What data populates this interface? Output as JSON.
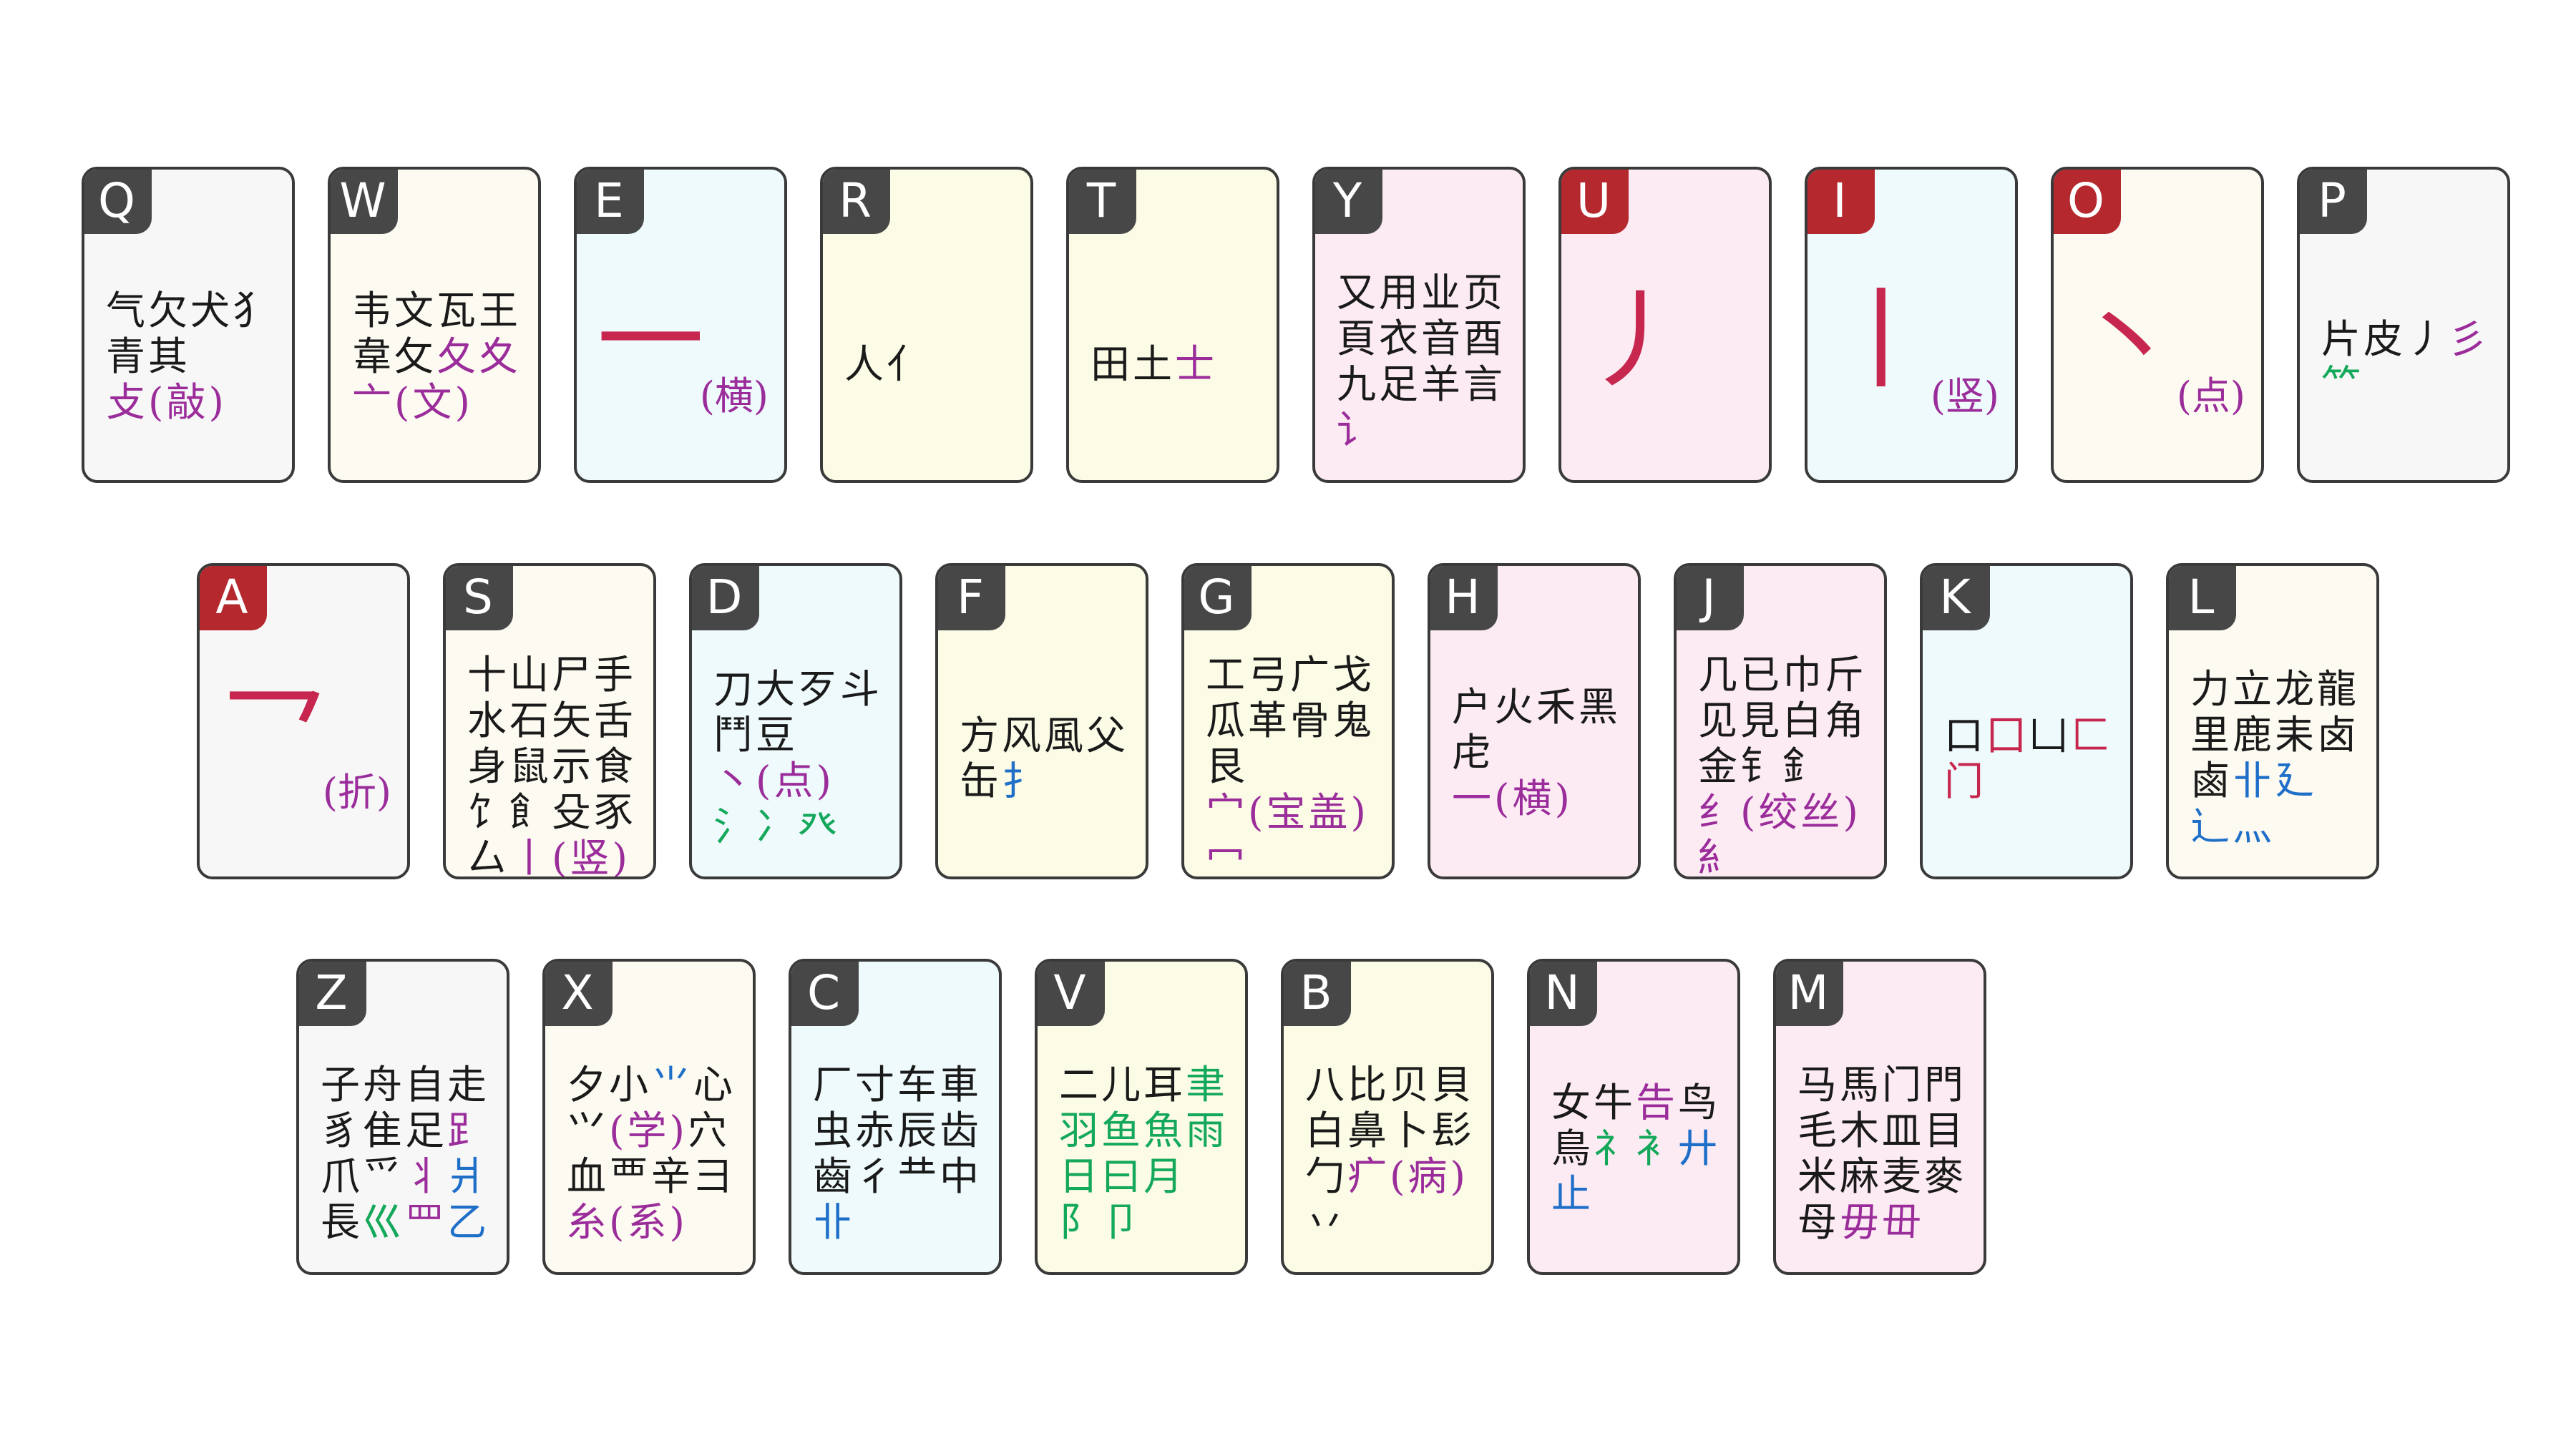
{
  "colors": {
    "black": "#1a1a1a",
    "purple": "#9b2d9b",
    "green": "#14a85a",
    "blue": "#1f6fc9",
    "crimson": "#c7264e"
  },
  "keys": [
    {
      "letter": "Q",
      "badge": "dark",
      "bg": "#f7f7f7",
      "lines": [
        [
          {
            "t": "气欠犬犭",
            "c": "black"
          }
        ],
        [
          {
            "t": "青其",
            "c": "black"
          }
        ],
        [
          {
            "t": "攴(敲)",
            "c": "purple"
          }
        ]
      ]
    },
    {
      "letter": "W",
      "badge": "dark",
      "bg": "#fdfbf1",
      "lines": [
        [
          {
            "t": "韦文瓦王",
            "c": "black"
          }
        ],
        [
          {
            "t": "韋攵",
            "c": "black"
          },
          {
            "t": "夂夊",
            "c": "purple"
          }
        ],
        [
          {
            "t": "亠(文)",
            "c": "purple"
          }
        ]
      ]
    },
    {
      "letter": "E",
      "badge": "dark",
      "bg": "#eefafc",
      "big": "一",
      "bigsub": "(横)"
    },
    {
      "letter": "R",
      "badge": "dark",
      "bg": "#fbfbe6",
      "lines": [
        [
          {
            "t": "人亻",
            "c": "black"
          }
        ]
      ]
    },
    {
      "letter": "T",
      "badge": "dark",
      "bg": "#fbfbe6",
      "lines": [
        [
          {
            "t": "田土",
            "c": "black"
          },
          {
            "t": "士",
            "c": "purple"
          }
        ]
      ]
    },
    {
      "letter": "Y",
      "badge": "dark",
      "bg": "#fcebf3",
      "lines": [
        [
          {
            "t": "又用业页",
            "c": "black"
          }
        ],
        [
          {
            "t": "頁衣音酉",
            "c": "black"
          }
        ],
        [
          {
            "t": "九足羊言",
            "c": "black"
          }
        ],
        [
          {
            "t": "讠",
            "c": "purple"
          }
        ]
      ]
    },
    {
      "letter": "U",
      "badge": "red",
      "bg": "#fcebf3",
      "big": "丿"
    },
    {
      "letter": "I",
      "badge": "red",
      "bg": "#eefafc",
      "big": "丨",
      "bigsub": "(竖)"
    },
    {
      "letter": "O",
      "badge": "red",
      "bg": "#fdfbf1",
      "big": "丶",
      "bigsub": "(点)"
    },
    {
      "letter": "P",
      "badge": "dark",
      "bg": "#f7f7f7",
      "lines": [
        [
          {
            "t": "片皮丿",
            "c": "black"
          },
          {
            "t": "彡",
            "c": "purple"
          }
        ],
        [
          {
            "t": "⺮",
            "c": "green"
          }
        ]
      ]
    },
    {
      "letter": "A",
      "badge": "red",
      "bg": "#f7f7f7",
      "big": "乛",
      "bigsub": "(折)"
    },
    {
      "letter": "S",
      "badge": "dark",
      "bg": "#fdfbf1",
      "lines": [
        [
          {
            "t": "十山尸手",
            "c": "black"
          }
        ],
        [
          {
            "t": "水石矢舌",
            "c": "black"
          }
        ],
        [
          {
            "t": "身鼠示食",
            "c": "black"
          }
        ],
        [
          {
            "t": "饣飠殳豕",
            "c": "black"
          }
        ],
        [
          {
            "t": "厶",
            "c": "black"
          },
          {
            "t": "丨(竖)",
            "c": "purple"
          }
        ]
      ]
    },
    {
      "letter": "D",
      "badge": "dark",
      "bg": "#eefafc",
      "lines": [
        [
          {
            "t": "刀大歹斗",
            "c": "black"
          }
        ],
        [
          {
            "t": "鬥豆",
            "c": "black"
          }
        ],
        [
          {
            "t": "丶(点)",
            "c": "purple"
          }
        ],
        [
          {
            "t": "氵冫癶",
            "c": "green"
          }
        ]
      ]
    },
    {
      "letter": "F",
      "badge": "dark",
      "bg": "#fbfbe6",
      "lines": [
        [
          {
            "t": "方风風父",
            "c": "black"
          }
        ],
        [
          {
            "t": "缶",
            "c": "black"
          },
          {
            "t": "扌",
            "c": "blue"
          }
        ]
      ]
    },
    {
      "letter": "G",
      "badge": "dark",
      "bg": "#fbfbe6",
      "lines": [
        [
          {
            "t": "工弓广戈",
            "c": "black"
          }
        ],
        [
          {
            "t": "瓜革骨鬼",
            "c": "black"
          }
        ],
        [
          {
            "t": "艮",
            "c": "black"
          }
        ],
        [
          {
            "t": "宀(宝盖)",
            "c": "purple"
          }
        ],
        [
          {
            "t": "冖",
            "c": "purple"
          }
        ]
      ]
    },
    {
      "letter": "H",
      "badge": "dark",
      "bg": "#fcebf3",
      "lines": [
        [
          {
            "t": "户火禾黑",
            "c": "black"
          }
        ],
        [
          {
            "t": "虍",
            "c": "black"
          }
        ],
        [
          {
            "t": "一(横)",
            "c": "purple"
          }
        ]
      ]
    },
    {
      "letter": "J",
      "badge": "dark",
      "bg": "#fcebf3",
      "lines": [
        [
          {
            "t": "几已巾斤",
            "c": "black"
          }
        ],
        [
          {
            "t": "见見白角",
            "c": "black"
          }
        ],
        [
          {
            "t": "金钅釒",
            "c": "black"
          }
        ],
        [
          {
            "t": "纟(绞丝)",
            "c": "purple"
          }
        ],
        [
          {
            "t": "糹",
            "c": "purple"
          }
        ]
      ]
    },
    {
      "letter": "K",
      "badge": "dark",
      "bg": "#eefafc",
      "lines": [
        [
          {
            "t": "口",
            "c": "black"
          },
          {
            "t": "囗",
            "c": "crimson"
          },
          {
            "t": "凵",
            "c": "black"
          },
          {
            "t": "匚",
            "c": "crimson"
          }
        ],
        [
          {
            "t": "门",
            "c": "crimson"
          }
        ]
      ]
    },
    {
      "letter": "L",
      "badge": "dark",
      "bg": "#fdfbf1",
      "lines": [
        [
          {
            "t": "力立龙龍",
            "c": "black"
          }
        ],
        [
          {
            "t": "里鹿耒卤",
            "c": "black"
          }
        ],
        [
          {
            "t": "鹵",
            "c": "black"
          },
          {
            "t": "卝",
            "c": "blue"
          },
          {
            "t": "廴",
            "c": "blue"
          }
        ],
        [
          {
            "t": "辶灬",
            "c": "blue"
          }
        ]
      ]
    },
    {
      "letter": "Z",
      "badge": "dark",
      "bg": "#f7f7f7",
      "lines": [
        [
          {
            "t": "子舟自走",
            "c": "black"
          }
        ],
        [
          {
            "t": "豸隹足",
            "c": "black"
          },
          {
            "t": "⻊",
            "c": "purple"
          }
        ],
        [
          {
            "t": "爪爫",
            "c": "black"
          },
          {
            "t": "丬",
            "c": "purple"
          },
          {
            "t": "爿",
            "c": "blue"
          }
        ],
        [
          {
            "t": "長",
            "c": "black"
          },
          {
            "t": "巛",
            "c": "green"
          },
          {
            "t": "罒",
            "c": "purple"
          },
          {
            "t": "乙",
            "c": "blue"
          }
        ]
      ]
    },
    {
      "letter": "X",
      "badge": "dark",
      "bg": "#fdfbf1",
      "lines": [
        [
          {
            "t": "夕小",
            "c": "black"
          },
          {
            "t": "⺌",
            "c": "blue"
          },
          {
            "t": "心",
            "c": "black"
          }
        ],
        [
          {
            "t": "⺍",
            "c": "black"
          },
          {
            "t": "(学)",
            "c": "purple"
          },
          {
            "t": "穴",
            "c": "black"
          }
        ],
        [
          {
            "t": "血覀辛彐",
            "c": "black"
          }
        ],
        [
          {
            "t": "糸(系)",
            "c": "purple"
          }
        ]
      ]
    },
    {
      "letter": "C",
      "badge": "dark",
      "bg": "#eefafc",
      "lines": [
        [
          {
            "t": "厂寸车車",
            "c": "black"
          }
        ],
        [
          {
            "t": "虫赤辰齿",
            "c": "black"
          }
        ],
        [
          {
            "t": "齒彳龷中",
            "c": "black"
          }
        ],
        [
          {
            "t": "卝",
            "c": "blue"
          }
        ]
      ]
    },
    {
      "letter": "V",
      "badge": "dark",
      "bg": "#fbfbe6",
      "lines": [
        [
          {
            "t": "二儿耳",
            "c": "black"
          },
          {
            "t": "聿",
            "c": "green"
          }
        ],
        [
          {
            "t": "羽鱼魚雨",
            "c": "green"
          }
        ],
        [
          {
            "t": "日曰月",
            "c": "green"
          }
        ],
        [
          {
            "t": "阝卩",
            "c": "green"
          }
        ]
      ]
    },
    {
      "letter": "B",
      "badge": "dark",
      "bg": "#fbfbe6",
      "lines": [
        [
          {
            "t": "八比贝貝",
            "c": "black"
          }
        ],
        [
          {
            "t": "白鼻卜髟",
            "c": "black"
          }
        ],
        [
          {
            "t": "勹",
            "c": "black"
          },
          {
            "t": "疒(病)",
            "c": "purple"
          }
        ],
        [
          {
            "t": "丷",
            "c": "black"
          }
        ]
      ]
    },
    {
      "letter": "N",
      "badge": "dark",
      "bg": "#fcebf3",
      "lines": [
        [
          {
            "t": "女牛",
            "c": "black"
          },
          {
            "t": "告",
            "c": "purple"
          },
          {
            "t": "鸟",
            "c": "black"
          }
        ],
        [
          {
            "t": "鳥",
            "c": "black"
          },
          {
            "t": "礻衤",
            "c": "green"
          },
          {
            "t": "廾",
            "c": "blue"
          }
        ],
        [
          {
            "t": "止",
            "c": "blue"
          }
        ]
      ]
    },
    {
      "letter": "M",
      "badge": "dark",
      "bg": "#fcebf3",
      "lines": [
        [
          {
            "t": "马馬门門",
            "c": "black"
          }
        ],
        [
          {
            "t": "毛木皿目",
            "c": "black"
          }
        ],
        [
          {
            "t": "米麻麦麥",
            "c": "black"
          }
        ],
        [
          {
            "t": "母",
            "c": "black"
          },
          {
            "t": "毋毌",
            "c": "purple"
          }
        ]
      ]
    }
  ]
}
